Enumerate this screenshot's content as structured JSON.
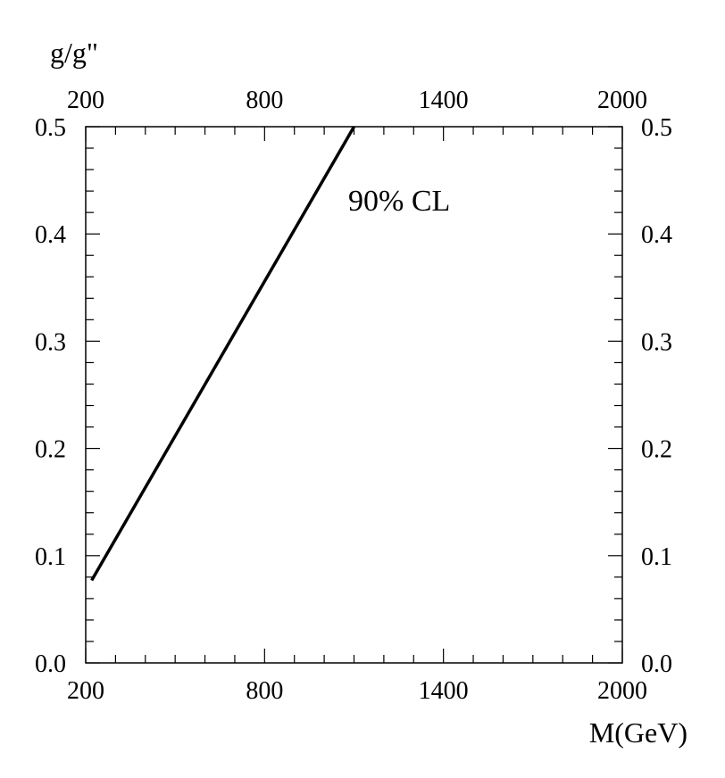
{
  "chart_data": {
    "type": "line",
    "ylabel": "g/g\"",
    "xlabel": "M(GeV)",
    "annotation": "90% CL",
    "xlim": [
      200,
      2000
    ],
    "ylim": [
      0.0,
      0.5
    ],
    "x_ticks": [
      200,
      800,
      1400,
      2000
    ],
    "x_tick_labels": [
      "200",
      "800",
      "1400",
      "2000"
    ],
    "y_ticks": [
      0.0,
      0.1,
      0.2,
      0.3,
      0.4,
      0.5
    ],
    "y_tick_labels": [
      "0.0",
      "0.1",
      "0.2",
      "0.3",
      "0.4",
      "0.5"
    ],
    "grid": false,
    "line_color": "#000000",
    "series": [
      {
        "x": [
          220,
          1100
        ],
        "y": [
          0.077,
          0.5
        ]
      }
    ]
  }
}
